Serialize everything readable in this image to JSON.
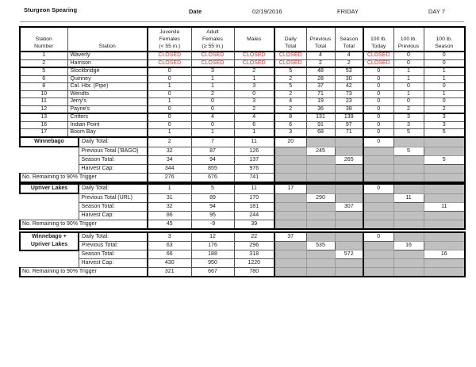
{
  "header": {
    "title": "Sturgeon Spearing",
    "date_label": "Date",
    "date_value": "02/19/2016",
    "weekday": "FRIDAY",
    "day_label": "DAY 7"
  },
  "colors": {
    "closed_text": "#cc4444",
    "unused_cell_fill": "#c0c0c0"
  },
  "main_table": {
    "columns": [
      {
        "id": "station-number",
        "lines": [
          "",
          "Station",
          "Number"
        ]
      },
      {
        "id": "station",
        "lines": [
          "",
          "",
          "Station"
        ]
      },
      {
        "id": "juvenile-females",
        "lines": [
          "Juvenile",
          "Females",
          "(< 55 in.)"
        ]
      },
      {
        "id": "adult-females",
        "lines": [
          "Adult",
          "Females",
          "(≥ 55 in.)"
        ]
      },
      {
        "id": "males",
        "lines": [
          "",
          "Males",
          ""
        ]
      },
      {
        "id": "daily-total",
        "lines": [
          "",
          "Daily",
          "Total"
        ]
      },
      {
        "id": "previous-total",
        "lines": [
          "",
          "Previous",
          "Total"
        ]
      },
      {
        "id": "season-total",
        "lines": [
          "",
          "Season",
          "Total"
        ]
      },
      {
        "id": "lb100-today",
        "lines": [
          "",
          "100 lb.",
          "Today"
        ]
      },
      {
        "id": "lb100-previous",
        "lines": [
          "",
          "100 lb.",
          "Previous"
        ]
      },
      {
        "id": "lb100-season",
        "lines": [
          "",
          "100 lb.",
          "Season"
        ]
      }
    ],
    "rows": [
      {
        "cells": [
          "1",
          "Waverly",
          "CLOSED",
          "CLOSED",
          "CLOSED",
          "CLOSED",
          "4",
          "4",
          "CLOSED",
          "0",
          "0"
        ],
        "group_end": false
      },
      {
        "cells": [
          "2",
          "Harrison",
          "CLOSED",
          "CLOSED",
          "CLOSED",
          "CLOSED",
          "2",
          "2",
          "CLOSED",
          "0",
          "0"
        ],
        "group_end": true
      },
      {
        "cells": [
          "5",
          "Stockbridge",
          "0",
          "3",
          "2",
          "5",
          "48",
          "53",
          "0",
          "1",
          "1"
        ],
        "group_end": false
      },
      {
        "cells": [
          "6",
          "Quinney",
          "0",
          "1",
          "1",
          "2",
          "28",
          "30",
          "0",
          "1",
          "1"
        ],
        "group_end": false
      },
      {
        "cells": [
          "8",
          "Cal. Hbr. (Pipe)",
          "1",
          "1",
          "3",
          "5",
          "37",
          "42",
          "0",
          "0",
          "0"
        ],
        "group_end": false
      },
      {
        "cells": [
          "10",
          "Wendts",
          "0",
          "2",
          "0",
          "2",
          "71",
          "73",
          "0",
          "1",
          "1"
        ],
        "group_end": false
      },
      {
        "cells": [
          "11",
          "Jerry's",
          "1",
          "0",
          "3",
          "4",
          "19",
          "23",
          "0",
          "0",
          "0"
        ],
        "group_end": false
      },
      {
        "cells": [
          "12",
          "Payne's",
          "0",
          "0",
          "2",
          "2",
          "36",
          "38",
          "0",
          "2",
          "2"
        ],
        "group_end": true
      },
      {
        "cells": [
          "13",
          "Critters",
          "0",
          "4",
          "4",
          "8",
          "131",
          "139",
          "0",
          "3",
          "3"
        ],
        "group_end": false
      },
      {
        "cells": [
          "16",
          "Indian Point",
          "0",
          "0",
          "6",
          "6",
          "91",
          "97",
          "0",
          "3",
          "3"
        ],
        "group_end": false
      },
      {
        "cells": [
          "17",
          "Boom Bay",
          "1",
          "1",
          "1",
          "3",
          "68",
          "71",
          "0",
          "5",
          "5"
        ],
        "group_end": false
      }
    ]
  },
  "summaries": [
    {
      "id": "winnebago",
      "label_lines": [
        "Winnebago"
      ],
      "rows": [
        {
          "label": "Daily Total:",
          "counts": [
            "2",
            "7",
            "11"
          ],
          "totals": [
            "20",
            null,
            null
          ],
          "hundred_lb": [
            "0",
            null,
            null
          ]
        },
        {
          "label": "Previous Total ('BAGO)",
          "counts": [
            "32",
            "87",
            "126"
          ],
          "totals": [
            null,
            "245",
            null
          ],
          "hundred_lb": [
            null,
            "5",
            null
          ]
        },
        {
          "label": "Season Total:",
          "counts": [
            "34",
            "94",
            "137"
          ],
          "totals": [
            null,
            null,
            "265"
          ],
          "hundred_lb": [
            null,
            null,
            "5"
          ]
        },
        {
          "label": "Harvest Cap:",
          "counts": [
            "344",
            "855",
            "976"
          ],
          "totals": [
            null,
            null,
            null
          ],
          "hundred_lb": [
            null,
            null,
            null
          ]
        },
        {
          "label": "No. Remaining to 90% Trigger",
          "counts": [
            "276",
            "676",
            "741"
          ],
          "totals": [
            null,
            null,
            null
          ],
          "hundred_lb": [
            null,
            null,
            null
          ]
        }
      ]
    },
    {
      "id": "upriver-lakes",
      "label_lines": [
        "Upriver Lakes"
      ],
      "rows": [
        {
          "label": "Daily Total:",
          "counts": [
            "1",
            "5",
            "11"
          ],
          "totals": [
            "17",
            null,
            null
          ],
          "hundred_lb": [
            "0",
            null,
            null
          ]
        },
        {
          "label": "Previous Total (URL)",
          "counts": [
            "31",
            "89",
            "170"
          ],
          "totals": [
            null,
            "290",
            null
          ],
          "hundred_lb": [
            null,
            "11",
            null
          ]
        },
        {
          "label": "Season Total:",
          "counts": [
            "32",
            "94",
            "181"
          ],
          "totals": [
            null,
            null,
            "307"
          ],
          "hundred_lb": [
            null,
            null,
            "11"
          ]
        },
        {
          "label": "Harvest Cap:",
          "counts": [
            "86",
            "95",
            "244"
          ],
          "totals": [
            null,
            null,
            null
          ],
          "hundred_lb": [
            null,
            null,
            null
          ]
        },
        {
          "label": "No. Remaining to 90% Trigger",
          "counts": [
            "45",
            "-9",
            "39"
          ],
          "totals": [
            null,
            null,
            null
          ],
          "hundred_lb": [
            null,
            null,
            null
          ]
        }
      ]
    },
    {
      "id": "winnebago-plus-upriver",
      "label_lines": [
        "Winnebago +",
        "Upriver Lakes"
      ],
      "rows": [
        {
          "label": "Daily Total:",
          "counts": [
            "3",
            "12",
            "22"
          ],
          "totals": [
            "37",
            null,
            null
          ],
          "hundred_lb": [
            "0",
            null,
            null
          ]
        },
        {
          "label": "Previous Total:",
          "counts": [
            "63",
            "176",
            "296"
          ],
          "totals": [
            null,
            "535",
            null
          ],
          "hundred_lb": [
            null,
            "16",
            null
          ]
        },
        {
          "label": "Season Total:",
          "counts": [
            "66",
            "188",
            "318"
          ],
          "totals": [
            null,
            null,
            "572"
          ],
          "hundred_lb": [
            null,
            null,
            "16"
          ]
        },
        {
          "label": "Harvest Cap:",
          "counts": [
            "430",
            "950",
            "1220"
          ],
          "totals": [
            null,
            null,
            null
          ],
          "hundred_lb": [
            null,
            null,
            null
          ]
        },
        {
          "label": "No. Remaining to 90% Trigger",
          "counts": [
            "321",
            "667",
            "780"
          ],
          "totals": [
            null,
            null,
            null
          ],
          "hundred_lb": [
            null,
            null,
            null
          ]
        }
      ]
    }
  ]
}
